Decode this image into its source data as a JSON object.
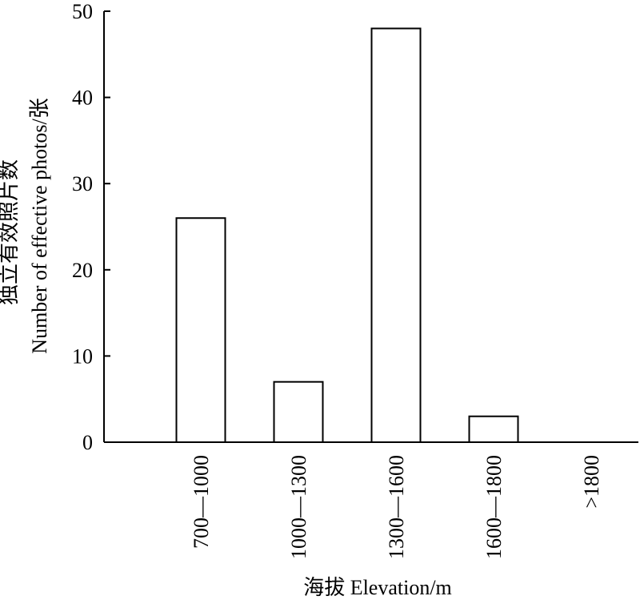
{
  "chart_data": {
    "type": "bar",
    "title": "",
    "xlabel": "海拔 Elevation/m",
    "ylabel_line1": "独立有效照片数",
    "ylabel_line2": "Number of effective photos/张",
    "categories": [
      "700—1000",
      "1000—1300",
      "1300—1600",
      "1600—1800",
      ">1800"
    ],
    "values": [
      26,
      7,
      48,
      3,
      0
    ],
    "ylim": [
      0,
      50
    ],
    "yticks": [
      "0",
      "10",
      "20",
      "30",
      "40",
      "50"
    ],
    "grid": false,
    "legend": "none",
    "bar_fill": "#ffffff",
    "bar_stroke": "#000000"
  }
}
